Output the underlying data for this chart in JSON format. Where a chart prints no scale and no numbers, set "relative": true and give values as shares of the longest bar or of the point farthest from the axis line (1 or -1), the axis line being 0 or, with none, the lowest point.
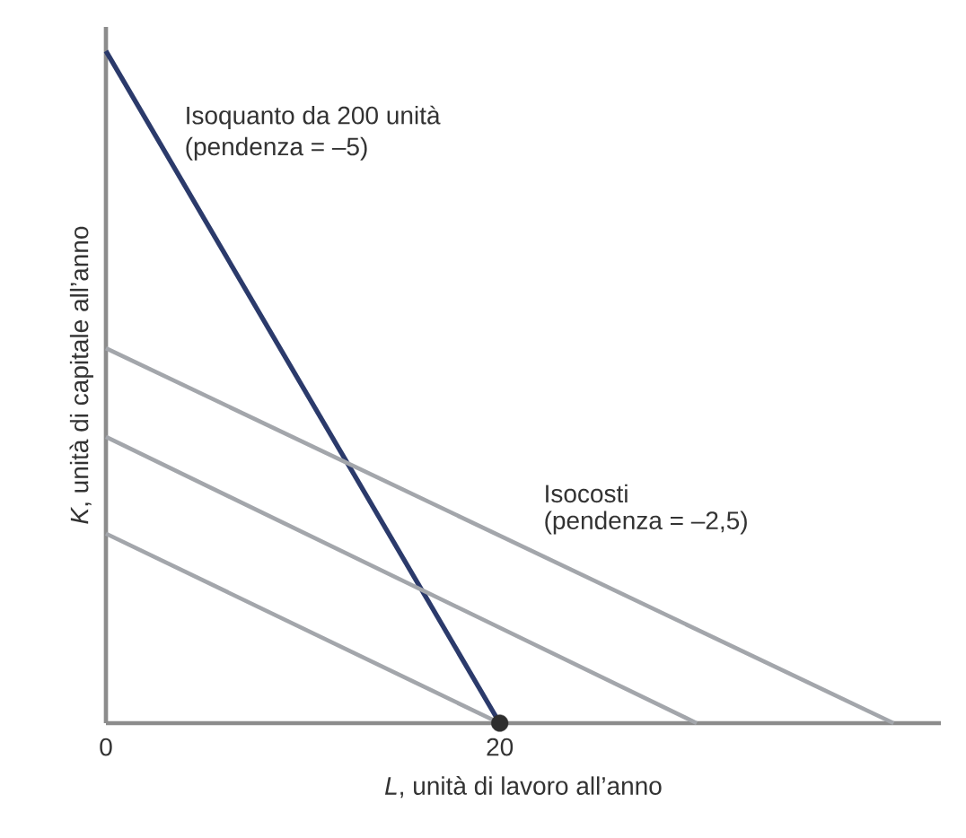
{
  "chart_data": {
    "type": "line",
    "relative": true,
    "xlabel": "*L*, unità di lavoro all’anno",
    "ylabel": "*K*, unità di capitale all’anno",
    "xlim": [
      0,
      42.4
    ],
    "xticks": [
      0,
      20
    ],
    "line_style": "solid",
    "series": [
      {
        "color": "#2b3a6b",
        "x": [
          0,
          20
        ],
        "values": [
          1,
          0
        ]
      },
      {
        "color": "#a3a6ab",
        "x": [
          0,
          20
        ],
        "values": [
          0.282,
          0
        ]
      },
      {
        "color": "#a3a6ab",
        "x": [
          0,
          30
        ],
        "values": [
          0.426,
          0
        ]
      },
      {
        "color": "#a3a6ab",
        "x": [
          0,
          40
        ],
        "values": [
          0.558,
          0
        ]
      },
      {
        "type": "scatter",
        "color": "#2e2e2e",
        "x": [
          20
        ],
        "values": [
          0
        ]
      }
    ],
    "annotations": [
      "Isoquanto da 200 unità",
      "(pendenza = –5)",
      "Isocosti",
      "(pendenza = –2,5)"
    ]
  }
}
